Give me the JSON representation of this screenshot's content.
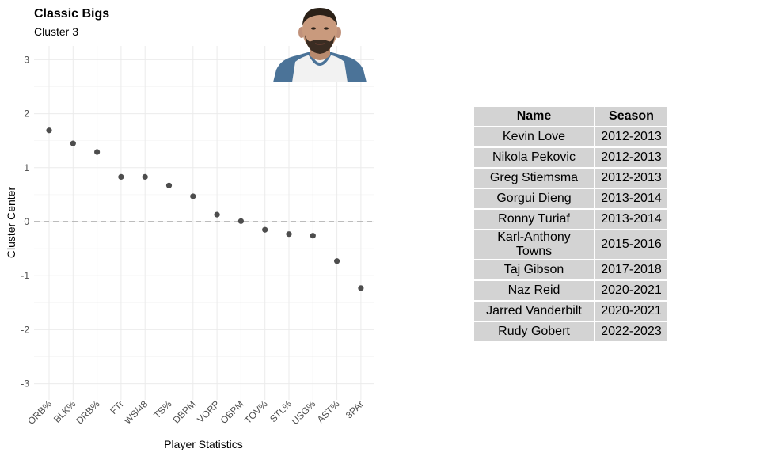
{
  "chart_data": {
    "type": "scatter",
    "title": "Classic Bigs",
    "subtitle": "Cluster 3",
    "xlabel": "Player Statistics",
    "ylabel": "Cluster Center",
    "categories": [
      "ORB%",
      "BLK%",
      "DRB%",
      "FTr",
      "WS/48",
      "TS%",
      "DBPM",
      "VORP",
      "OBPM",
      "TOV%",
      "STL%",
      "USG%",
      "AST%",
      "3PAr"
    ],
    "values": [
      1.69,
      1.45,
      1.29,
      0.83,
      0.83,
      0.67,
      0.47,
      0.13,
      0.01,
      -0.15,
      -0.23,
      -0.26,
      -0.73,
      -1.23
    ],
    "yticks": [
      3,
      2,
      1,
      0,
      -1,
      -2,
      -3
    ],
    "ylim": [
      -3.25,
      3.2
    ],
    "reference_line": 0,
    "grid": true,
    "colors": {
      "point": "#4d4d4d",
      "grid": "#ebebeb",
      "reference_line": "#a6a6a6"
    }
  },
  "table": {
    "headers": {
      "name": "Name",
      "season": "Season"
    },
    "rows": [
      {
        "name": "Kevin Love",
        "season": "2012-2013"
      },
      {
        "name": "Nikola Pekovic",
        "season": "2012-2013"
      },
      {
        "name": "Greg Stiemsma",
        "season": "2012-2013"
      },
      {
        "name": "Gorgui Dieng",
        "season": "2013-2014"
      },
      {
        "name": "Ronny Turiaf",
        "season": "2013-2014"
      },
      {
        "name": "Karl-Anthony Towns",
        "season": "2015-2016"
      },
      {
        "name": "Taj Gibson",
        "season": "2017-2018"
      },
      {
        "name": "Naz Reid",
        "season": "2020-2021"
      },
      {
        "name": "Jarred Vanderbilt",
        "season": "2020-2021"
      },
      {
        "name": "Rudy Gobert",
        "season": "2022-2023"
      }
    ],
    "colors": {
      "cell_background": "#d3d3d3"
    }
  },
  "photo": {
    "icon": "player-headshot",
    "colors": {
      "skin": "#c99a7d",
      "hair": "#2b2118",
      "jersey": "#f2f2f2",
      "trim": "#4b7398"
    }
  }
}
